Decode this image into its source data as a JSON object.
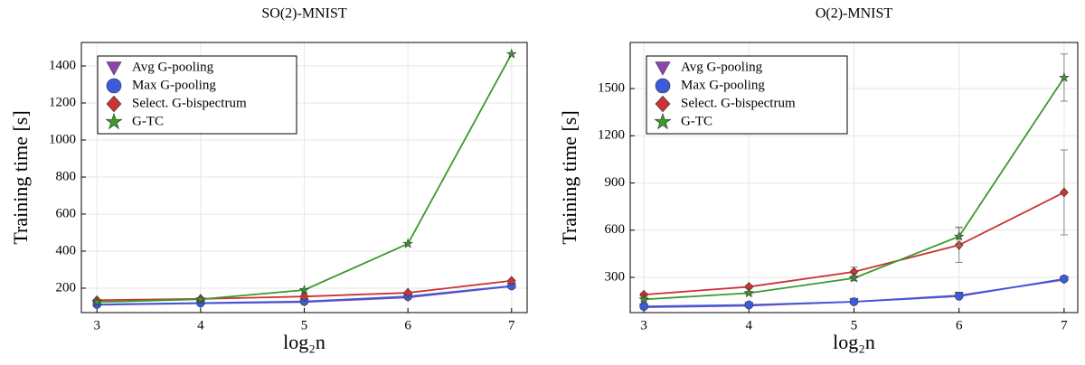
{
  "chart_data": [
    {
      "type": "line",
      "title": "SO(2)-MNIST",
      "x_label": "log₂n",
      "y_label": "Training time [s]",
      "x": [
        3,
        4,
        5,
        6,
        7
      ],
      "xlim": [
        2.85,
        7.15
      ],
      "xticks": [
        3,
        4,
        5,
        6,
        7
      ],
      "ylim": [
        68,
        1527
      ],
      "yticks": [
        200,
        400,
        600,
        800,
        1000,
        1200,
        1400
      ],
      "grid": true,
      "legend": "upper-left",
      "series": [
        {
          "name": "Avg G-pooling",
          "color": "#8e44ad",
          "marker": "triangle-down",
          "values": [
            110,
            118,
            125,
            150,
            210
          ]
        },
        {
          "name": "Max G-pooling",
          "color": "#3b5bdb",
          "marker": "circle",
          "values": [
            112,
            120,
            128,
            155,
            212
          ]
        },
        {
          "name": "Select. G-bispectrum",
          "color": "#cc3333",
          "marker": "diamond",
          "values": [
            135,
            142,
            155,
            175,
            240
          ]
        },
        {
          "name": "G-TC",
          "color": "#3a9a2a",
          "marker": "star",
          "values": [
            125,
            140,
            190,
            440,
            1465
          ]
        }
      ]
    },
    {
      "type": "line",
      "title": "O(2)-MNIST",
      "x_label": "log₂n",
      "y_label": "Training time [s]",
      "x": [
        3,
        4,
        5,
        6,
        7
      ],
      "xlim": [
        2.87,
        7.13
      ],
      "xticks": [
        3,
        4,
        5,
        6,
        7
      ],
      "ylim": [
        76,
        1793
      ],
      "yticks": [
        300,
        600,
        900,
        1200,
        1500
      ],
      "grid": true,
      "legend": "upper-left",
      "series": [
        {
          "name": "Avg G-pooling",
          "color": "#8e44ad",
          "marker": "triangle-down",
          "values": [
            110,
            120,
            145,
            185,
            285
          ]
        },
        {
          "name": "Max G-pooling",
          "color": "#3b5bdb",
          "marker": "circle",
          "values": [
            115,
            125,
            145,
            180,
            290
          ]
        },
        {
          "name": "Select. G-bispectrum",
          "color": "#cc3333",
          "marker": "diamond",
          "values": [
            190,
            240,
            335,
            505,
            840
          ],
          "errors": [
            10,
            10,
            30,
            110,
            270
          ]
        },
        {
          "name": "G-TC",
          "color": "#3a9a2a",
          "marker": "star",
          "values": [
            160,
            200,
            295,
            560,
            1570
          ],
          "errors": [
            10,
            10,
            15,
            60,
            150
          ]
        }
      ]
    }
  ]
}
